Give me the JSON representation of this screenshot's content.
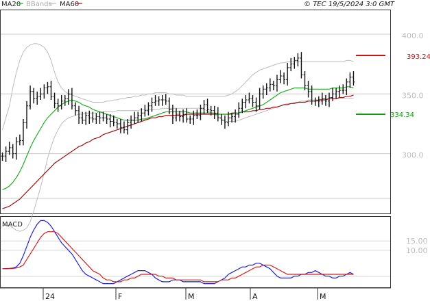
{
  "legend": {
    "ma20": "MA20",
    "bbands": "BBands",
    "ma60": "MA60",
    "ma20_color": "#22aa22",
    "bbands_color": "#bbbbbb",
    "ma60_color": "#a01010"
  },
  "header": {
    "source_stamp": "© TEC 19/5/2024 3:0 GMT"
  },
  "macd_panel": {
    "label": "MACD"
  },
  "annotations": {
    "upper_value": "393.24",
    "upper_color": "#cc1111",
    "lower_value": "334.34",
    "lower_color": "#119911"
  },
  "chart_data": [
    {
      "type": "candlestick",
      "panel": "price",
      "title": "",
      "yticks": [
        "400.0",
        "350.0",
        "300.0"
      ],
      "ylim": [
        250,
        420
      ],
      "xticks": [
        "24",
        "F",
        "M",
        "A",
        "M"
      ],
      "grid": true,
      "series_close": [
        298,
        302,
        305,
        300,
        310,
        311,
        326,
        340,
        352,
        346,
        348,
        350,
        355,
        356,
        348,
        342,
        340,
        344,
        346,
        350,
        340,
        336,
        330,
        328,
        332,
        330,
        329,
        331,
        330,
        330,
        329,
        327,
        326,
        325,
        322,
        320,
        326,
        328,
        330,
        332,
        334,
        336,
        340,
        343,
        344,
        345,
        345,
        344,
        337,
        330,
        333,
        331,
        333,
        329,
        329,
        332,
        332,
        338,
        341,
        337,
        336,
        334,
        330,
        328,
        326,
        330,
        331,
        333,
        338,
        343,
        345,
        346,
        343,
        340,
        350,
        354,
        355,
        358,
        357,
        362,
        365,
        362,
        372,
        375,
        378,
        380,
        366,
        357,
        352,
        344,
        344,
        344,
        346,
        344,
        347,
        350,
        352,
        353,
        353,
        360,
        364,
        360
      ],
      "MA20": [
        270,
        271,
        273,
        276,
        280,
        285,
        291,
        298,
        305,
        311,
        316,
        321,
        326,
        330,
        333,
        336,
        339,
        341,
        343,
        344,
        345,
        344,
        343,
        341,
        340,
        339,
        337,
        336,
        335,
        334,
        333,
        332,
        331,
        330,
        329,
        328,
        328,
        328,
        328,
        328,
        329,
        329,
        330,
        331,
        332,
        333,
        334,
        335,
        335,
        335,
        335,
        335,
        335,
        335,
        334,
        334,
        334,
        334,
        334,
        334,
        334,
        334,
        333,
        333,
        333,
        333,
        333,
        334,
        334,
        335,
        336,
        337,
        338,
        339,
        340,
        341,
        343,
        345,
        347,
        349,
        351,
        352,
        353,
        354,
        355,
        355,
        355,
        355,
        354,
        354,
        354,
        354,
        354,
        354,
        354,
        355,
        355,
        355,
        355,
        356,
        356,
        355
      ],
      "MA60": [
        254,
        255,
        256,
        258,
        260,
        262,
        265,
        268,
        271,
        274,
        277,
        280,
        283,
        286,
        289,
        292,
        294,
        296,
        298,
        300,
        302,
        304,
        306,
        307,
        309,
        310,
        312,
        313,
        314,
        316,
        317,
        318,
        319,
        320,
        321,
        322,
        323,
        324,
        325,
        326,
        327,
        328,
        329,
        330,
        330,
        331,
        331,
        332,
        332,
        332,
        332,
        332,
        332,
        333,
        333,
        333,
        333,
        333,
        333,
        333,
        333,
        333,
        333,
        333,
        333,
        333,
        334,
        334,
        334,
        335,
        335,
        335,
        336,
        336,
        337,
        337,
        338,
        338,
        339,
        339,
        340,
        341,
        341,
        342,
        342,
        343,
        343,
        343,
        344,
        344,
        344,
        345,
        345,
        345,
        346,
        346,
        346,
        347,
        347,
        348,
        348,
        349
      ],
      "BB_upper": [
        320,
        330,
        340,
        355,
        368,
        378,
        385,
        389,
        391,
        392,
        392,
        391,
        389,
        385,
        378,
        368,
        360,
        355,
        352,
        350,
        349,
        348,
        347,
        346,
        345,
        344,
        343,
        343,
        343,
        343,
        344,
        344,
        345,
        345,
        346,
        346,
        347,
        347,
        348,
        348,
        349,
        349,
        350,
        350,
        351,
        351,
        351,
        351,
        350,
        350,
        349,
        349,
        349,
        348,
        348,
        348,
        348,
        348,
        348,
        348,
        348,
        348,
        348,
        348,
        348,
        349,
        350,
        352,
        354,
        357,
        360,
        363,
        366,
        368,
        370,
        371,
        372,
        373,
        374,
        375,
        376,
        376,
        377,
        377,
        377,
        377,
        377,
        377,
        377,
        377,
        377,
        377,
        377,
        377,
        377,
        377,
        377,
        377,
        377,
        378,
        378,
        377
      ],
      "BB_lower": [
        240,
        240,
        240,
        238,
        236,
        235,
        236,
        238,
        243,
        252,
        262,
        272,
        284,
        296,
        306,
        314,
        320,
        325,
        328,
        330,
        331,
        332,
        333,
        333,
        334,
        334,
        334,
        334,
        335,
        335,
        335,
        335,
        335,
        336,
        336,
        336,
        336,
        336,
        336,
        336,
        337,
        337,
        337,
        337,
        337,
        337,
        338,
        338,
        338,
        338,
        338,
        338,
        338,
        338,
        338,
        338,
        338,
        338,
        337,
        336,
        334,
        333,
        331,
        329,
        327,
        327,
        327,
        327,
        328,
        329,
        330,
        331,
        332,
        333,
        334,
        335,
        336,
        337,
        338,
        339,
        340,
        341,
        342,
        342,
        343,
        343,
        344,
        344,
        345,
        345,
        345,
        345,
        346,
        346,
        346,
        346,
        346,
        346,
        346,
        346,
        346,
        346
      ]
    },
    {
      "type": "line",
      "panel": "macd",
      "title": "",
      "yticks": [
        "15.00",
        "10.00"
      ],
      "ylim": [
        -10,
        28
      ],
      "series": [
        {
          "name": "MACD",
          "color": "#1f1fd0",
          "values": [
            0,
            0.1,
            0.2,
            0.4,
            1,
            3,
            7,
            12,
            17,
            21,
            24,
            26,
            26,
            25,
            23,
            20,
            17,
            14,
            12,
            10,
            8,
            5,
            2,
            -1,
            -3,
            -4,
            -5,
            -6,
            -7,
            -8,
            -8,
            -8,
            -8,
            -7,
            -6,
            -5,
            -4,
            -3,
            -2,
            -1,
            -1,
            -1,
            -2,
            -3,
            -5,
            -6,
            -7,
            -7,
            -7,
            -6,
            -6,
            -6,
            -7,
            -7,
            -7,
            -7,
            -7,
            -7,
            -8,
            -8,
            -8,
            -8,
            -7,
            -6,
            -5,
            -3,
            -2,
            -1,
            0,
            1,
            1,
            2,
            2,
            3,
            3,
            2,
            1,
            0,
            -2,
            -4,
            -5,
            -5,
            -5,
            -5,
            -4,
            -4,
            -3,
            -3,
            -2,
            -2,
            -1,
            -2,
            -3,
            -4,
            -4,
            -5,
            -5,
            -4,
            -4,
            -3,
            -2,
            -3
          ]
        },
        {
          "name": "Signal",
          "color": "#d01f1f",
          "values": [
            0,
            0,
            0.1,
            0.2,
            0.4,
            1,
            2,
            5,
            8,
            11,
            14,
            17,
            19,
            20,
            20,
            20,
            19,
            17,
            15,
            13,
            11,
            9,
            7,
            5,
            3,
            1,
            -1,
            -2,
            -3,
            -5,
            -6,
            -6,
            -7,
            -7,
            -7,
            -6,
            -6,
            -5,
            -5,
            -4,
            -3,
            -3,
            -3,
            -3,
            -3,
            -4,
            -4,
            -5,
            -5,
            -5,
            -6,
            -6,
            -6,
            -6,
            -6,
            -6,
            -6,
            -6,
            -7,
            -7,
            -7,
            -7,
            -7,
            -6,
            -6,
            -6,
            -5,
            -5,
            -4,
            -3,
            -2,
            -1,
            0,
            1,
            1,
            2,
            2,
            2,
            1,
            0,
            -1,
            -2,
            -3,
            -3,
            -3,
            -3,
            -3,
            -3,
            -3,
            -3,
            -3,
            -3,
            -3,
            -3,
            -3,
            -3,
            -3,
            -3,
            -3,
            -3,
            -3,
            -3
          ]
        }
      ]
    }
  ]
}
